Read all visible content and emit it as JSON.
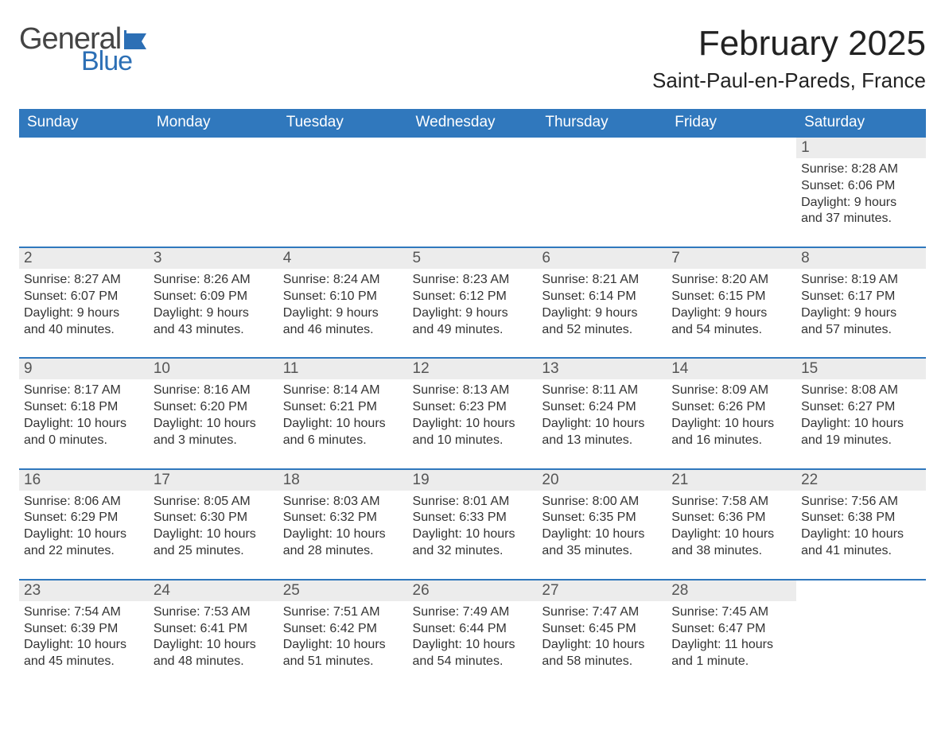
{
  "logo": {
    "general": "General",
    "blue": "Blue",
    "flag_color": "#2c6fb5"
  },
  "title": "February 2025",
  "location": "Saint-Paul-en-Pareds, France",
  "colors": {
    "header_bg": "#3078bd",
    "header_text": "#ffffff",
    "daynum_bg": "#ececec",
    "row_border": "#3078bd",
    "body_text": "#333333"
  },
  "calendar": {
    "type": "table",
    "columns": [
      "Sunday",
      "Monday",
      "Tuesday",
      "Wednesday",
      "Thursday",
      "Friday",
      "Saturday"
    ],
    "weeks": [
      [
        null,
        null,
        null,
        null,
        null,
        null,
        {
          "day": "1",
          "sunrise": "8:28 AM",
          "sunset": "6:06 PM",
          "daylight": "9 hours and 37 minutes."
        }
      ],
      [
        {
          "day": "2",
          "sunrise": "8:27 AM",
          "sunset": "6:07 PM",
          "daylight": "9 hours and 40 minutes."
        },
        {
          "day": "3",
          "sunrise": "8:26 AM",
          "sunset": "6:09 PM",
          "daylight": "9 hours and 43 minutes."
        },
        {
          "day": "4",
          "sunrise": "8:24 AM",
          "sunset": "6:10 PM",
          "daylight": "9 hours and 46 minutes."
        },
        {
          "day": "5",
          "sunrise": "8:23 AM",
          "sunset": "6:12 PM",
          "daylight": "9 hours and 49 minutes."
        },
        {
          "day": "6",
          "sunrise": "8:21 AM",
          "sunset": "6:14 PM",
          "daylight": "9 hours and 52 minutes."
        },
        {
          "day": "7",
          "sunrise": "8:20 AM",
          "sunset": "6:15 PM",
          "daylight": "9 hours and 54 minutes."
        },
        {
          "day": "8",
          "sunrise": "8:19 AM",
          "sunset": "6:17 PM",
          "daylight": "9 hours and 57 minutes."
        }
      ],
      [
        {
          "day": "9",
          "sunrise": "8:17 AM",
          "sunset": "6:18 PM",
          "daylight": "10 hours and 0 minutes."
        },
        {
          "day": "10",
          "sunrise": "8:16 AM",
          "sunset": "6:20 PM",
          "daylight": "10 hours and 3 minutes."
        },
        {
          "day": "11",
          "sunrise": "8:14 AM",
          "sunset": "6:21 PM",
          "daylight": "10 hours and 6 minutes."
        },
        {
          "day": "12",
          "sunrise": "8:13 AM",
          "sunset": "6:23 PM",
          "daylight": "10 hours and 10 minutes."
        },
        {
          "day": "13",
          "sunrise": "8:11 AM",
          "sunset": "6:24 PM",
          "daylight": "10 hours and 13 minutes."
        },
        {
          "day": "14",
          "sunrise": "8:09 AM",
          "sunset": "6:26 PM",
          "daylight": "10 hours and 16 minutes."
        },
        {
          "day": "15",
          "sunrise": "8:08 AM",
          "sunset": "6:27 PM",
          "daylight": "10 hours and 19 minutes."
        }
      ],
      [
        {
          "day": "16",
          "sunrise": "8:06 AM",
          "sunset": "6:29 PM",
          "daylight": "10 hours and 22 minutes."
        },
        {
          "day": "17",
          "sunrise": "8:05 AM",
          "sunset": "6:30 PM",
          "daylight": "10 hours and 25 minutes."
        },
        {
          "day": "18",
          "sunrise": "8:03 AM",
          "sunset": "6:32 PM",
          "daylight": "10 hours and 28 minutes."
        },
        {
          "day": "19",
          "sunrise": "8:01 AM",
          "sunset": "6:33 PM",
          "daylight": "10 hours and 32 minutes."
        },
        {
          "day": "20",
          "sunrise": "8:00 AM",
          "sunset": "6:35 PM",
          "daylight": "10 hours and 35 minutes."
        },
        {
          "day": "21",
          "sunrise": "7:58 AM",
          "sunset": "6:36 PM",
          "daylight": "10 hours and 38 minutes."
        },
        {
          "day": "22",
          "sunrise": "7:56 AM",
          "sunset": "6:38 PM",
          "daylight": "10 hours and 41 minutes."
        }
      ],
      [
        {
          "day": "23",
          "sunrise": "7:54 AM",
          "sunset": "6:39 PM",
          "daylight": "10 hours and 45 minutes."
        },
        {
          "day": "24",
          "sunrise": "7:53 AM",
          "sunset": "6:41 PM",
          "daylight": "10 hours and 48 minutes."
        },
        {
          "day": "25",
          "sunrise": "7:51 AM",
          "sunset": "6:42 PM",
          "daylight": "10 hours and 51 minutes."
        },
        {
          "day": "26",
          "sunrise": "7:49 AM",
          "sunset": "6:44 PM",
          "daylight": "10 hours and 54 minutes."
        },
        {
          "day": "27",
          "sunrise": "7:47 AM",
          "sunset": "6:45 PM",
          "daylight": "10 hours and 58 minutes."
        },
        {
          "day": "28",
          "sunrise": "7:45 AM",
          "sunset": "6:47 PM",
          "daylight": "11 hours and 1 minute."
        },
        null
      ]
    ],
    "labels": {
      "sunrise": "Sunrise: ",
      "sunset": "Sunset: ",
      "daylight": "Daylight: "
    }
  }
}
